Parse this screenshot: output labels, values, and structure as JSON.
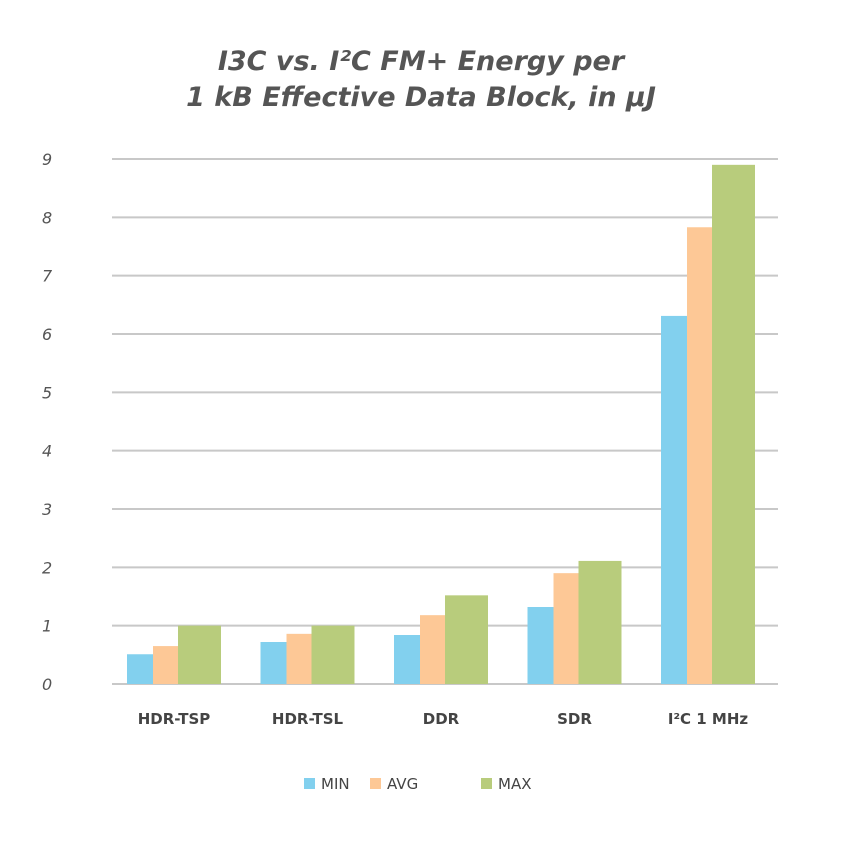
{
  "chart_data": {
    "type": "bar",
    "title_lines": [
      "I3C vs. I²C FM+ Energy per",
      "1 kB Effective Data Block, in µJ"
    ],
    "categories": [
      "HDR-TSP",
      "HDR-TSL",
      "DDR",
      "SDR",
      "I²C 1 MHz"
    ],
    "series": [
      {
        "name": "MIN",
        "color": "#82d0ee",
        "values": [
          0.51,
          0.72,
          0.84,
          1.32,
          6.31
        ]
      },
      {
        "name": "AVG",
        "color": "#fdc896",
        "values": [
          0.65,
          0.86,
          1.18,
          1.9,
          7.83
        ]
      },
      {
        "name": "MAX",
        "color": "#b8cc7c",
        "values": [
          1.0,
          1.0,
          1.52,
          2.11,
          8.9
        ]
      }
    ],
    "ylim": [
      0,
      9
    ],
    "yticks": [
      0,
      1,
      2,
      3,
      4,
      5,
      6,
      7,
      8,
      9
    ],
    "grid": true,
    "legend_position": "bottom"
  }
}
